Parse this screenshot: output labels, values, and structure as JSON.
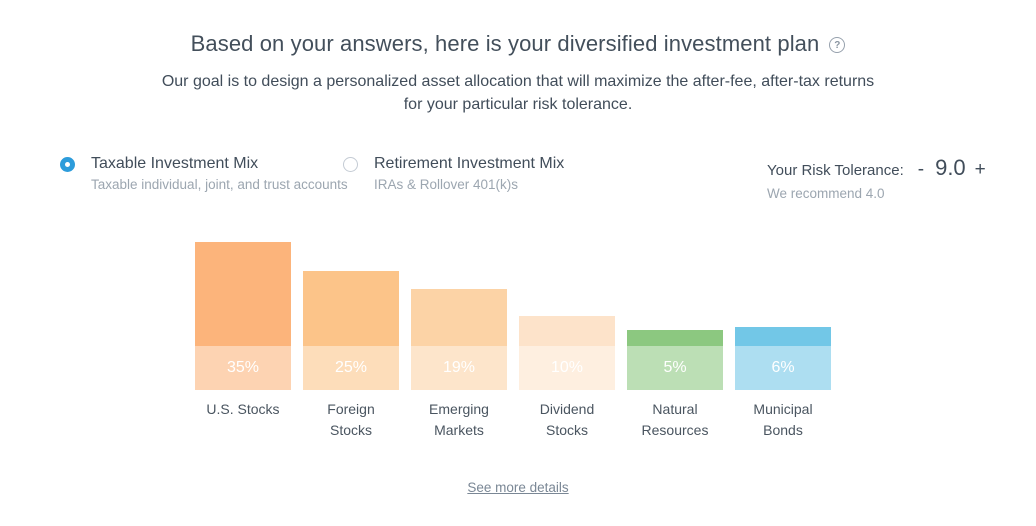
{
  "page": {
    "title": "Based on your answers, here is your diversified investment plan",
    "subtitle": "Our goal is to design a personalized asset allocation that will maximize the after-fee, after-tax returns\nfor your particular risk tolerance.",
    "help_icon_glyph": "?"
  },
  "account_toggle": {
    "options": [
      {
        "label": "Taxable Investment Mix",
        "description": "Taxable individual, joint, and trust accounts",
        "selected": true
      },
      {
        "label": "Retirement Investment Mix",
        "description": "IRAs & Rollover 401(k)s",
        "selected": false
      }
    ]
  },
  "risk_tolerance": {
    "label": "Your Risk Tolerance:",
    "decrease_label": "-",
    "value": "9.0",
    "increase_label": "+",
    "recommendation": "We recommend 4.0"
  },
  "chart_data": {
    "type": "bar",
    "title": "",
    "categories": [
      "U.S. Stocks",
      "Foreign Stocks",
      "Emerging Markets",
      "Dividend Stocks",
      "Natural Resources",
      "Municipal Bonds"
    ],
    "values": [
      35,
      25,
      19,
      10,
      5,
      6
    ],
    "unit": "%",
    "value_labels": [
      "35%",
      "25%",
      "19%",
      "10%",
      "5%",
      "6%"
    ],
    "category_lines": [
      [
        "U.S. Stocks"
      ],
      [
        "Foreign",
        "Stocks"
      ],
      [
        "Emerging",
        "Markets"
      ],
      [
        "Dividend",
        "Stocks"
      ],
      [
        "Natural",
        "Resources"
      ],
      [
        "Municipal",
        "Bonds"
      ]
    ],
    "bar_colors": [
      "#FCB47B",
      "#FCC489",
      "#FCD3A6",
      "#FDE3CA",
      "#8CC880",
      "#72C7E7"
    ],
    "value_label_color": "#FFFFFF",
    "legend": "none",
    "grid": false
  },
  "footer": {
    "details_link": "See more details"
  },
  "colors": {
    "accent_blue": "#2D9CDB",
    "text_dark": "#434F5B",
    "text_muted": "#9CA6B0",
    "link_gray": "#7A8795"
  }
}
